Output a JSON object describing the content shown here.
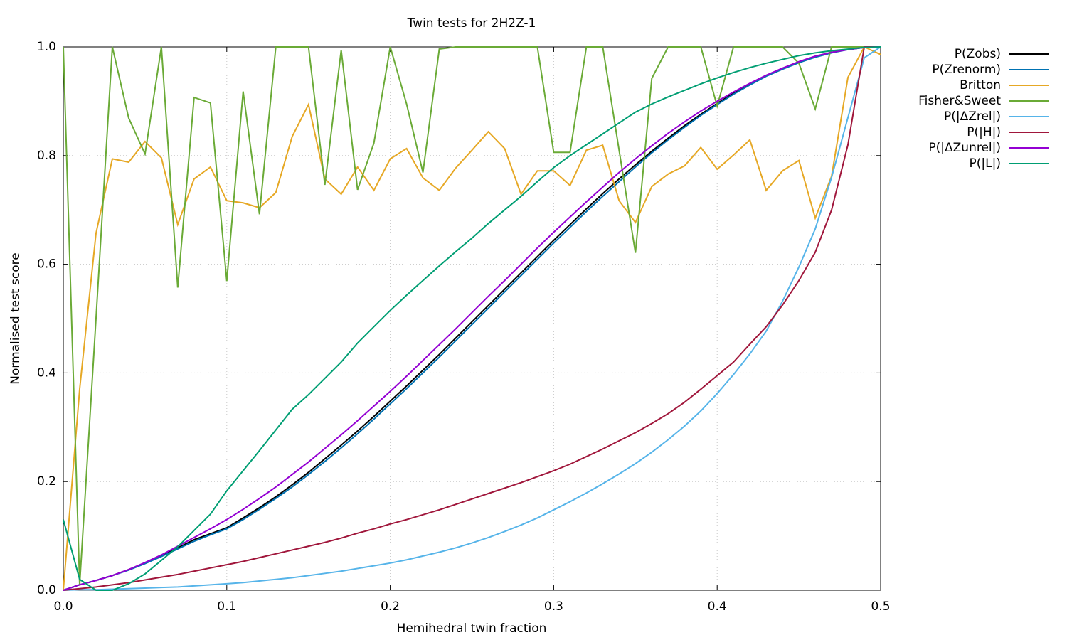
{
  "chart_data": {
    "type": "line",
    "title": "Twin tests for 2H2Z-1",
    "x_label": "Hemihedral twin fraction",
    "y_label": "Normalised test score",
    "x": [
      0,
      0.01,
      0.02,
      0.03,
      0.04,
      0.05,
      0.06,
      0.07,
      0.08,
      0.09,
      0.1,
      0.11,
      0.12,
      0.13,
      0.14,
      0.15,
      0.16,
      0.17,
      0.18,
      0.19,
      0.2,
      0.21,
      0.22,
      0.23,
      0.24,
      0.25,
      0.26,
      0.27,
      0.28,
      0.29,
      0.3,
      0.31,
      0.32,
      0.33,
      0.34,
      0.35,
      0.36,
      0.37,
      0.38,
      0.39,
      0.4,
      0.41,
      0.42,
      0.43,
      0.44,
      0.45,
      0.46,
      0.47,
      0.48,
      0.49,
      0.5
    ],
    "xlim": [
      0,
      0.5
    ],
    "xticks": [
      {
        "value": 0,
        "label": "0.0"
      },
      0.1,
      0.2,
      0.3,
      0.4,
      0.5
    ],
    "ylim": [
      0,
      1
    ],
    "yticks": [
      {
        "value": 0,
        "label": "0.0"
      },
      0.2,
      0.4,
      0.6,
      0.8,
      {
        "value": 1,
        "label": "1.0"
      }
    ],
    "grid": true,
    "legend": "outside-top-right",
    "series": [
      {
        "name": "P(Zobs)",
        "color": "#000000",
        "values": [
          0,
          0.01,
          0.018,
          0.027,
          0.038,
          0.05,
          0.063,
          0.078,
          0.093,
          0.104,
          0.115,
          0.133,
          0.152,
          0.172,
          0.194,
          0.217,
          0.242,
          0.267,
          0.293,
          0.32,
          0.348,
          0.376,
          0.405,
          0.434,
          0.464,
          0.494,
          0.524,
          0.554,
          0.584,
          0.614,
          0.644,
          0.673,
          0.702,
          0.73,
          0.757,
          0.783,
          0.808,
          0.832,
          0.855,
          0.876,
          0.896,
          0.915,
          0.932,
          0.947,
          0.96,
          0.972,
          0.982,
          0.99,
          0.995,
          0.999,
          1.0
        ]
      },
      {
        "name": "P(Zrenorm)",
        "color": "#0072b2",
        "values": [
          0,
          0.01,
          0.018,
          0.027,
          0.037,
          0.049,
          0.062,
          0.076,
          0.09,
          0.102,
          0.113,
          0.13,
          0.149,
          0.169,
          0.19,
          0.213,
          0.237,
          0.262,
          0.288,
          0.315,
          0.343,
          0.371,
          0.4,
          0.429,
          0.459,
          0.489,
          0.519,
          0.549,
          0.579,
          0.609,
          0.639,
          0.668,
          0.697,
          0.725,
          0.752,
          0.779,
          0.805,
          0.829,
          0.852,
          0.874,
          0.894,
          0.913,
          0.93,
          0.946,
          0.959,
          0.971,
          0.981,
          0.989,
          0.995,
          0.999,
          1.0
        ]
      },
      {
        "name": "Britton",
        "color": "#e6a825",
        "values": [
          0,
          0.37,
          0.657,
          0.794,
          0.788,
          0.826,
          0.796,
          0.673,
          0.757,
          0.779,
          0.717,
          0.713,
          0.704,
          0.732,
          0.835,
          0.894,
          0.757,
          0.729,
          0.779,
          0.736,
          0.794,
          0.813,
          0.759,
          0.736,
          0.777,
          0.81,
          0.844,
          0.813,
          0.729,
          0.772,
          0.772,
          0.745,
          0.81,
          0.819,
          0.717,
          0.677,
          0.743,
          0.766,
          0.781,
          0.815,
          0.775,
          0.801,
          0.829,
          0.736,
          0.772,
          0.791,
          0.685,
          0.762,
          0.944,
          1.0,
          0.986
        ]
      },
      {
        "name": "Fisher&Sweet",
        "color": "#6aaa36",
        "values": [
          1.0,
          0.01,
          0.5,
          1.0,
          0.869,
          0.803,
          1.0,
          0.557,
          0.907,
          0.897,
          0.569,
          0.918,
          0.692,
          1.0,
          1.0,
          1.0,
          0.746,
          0.994,
          0.737,
          0.823,
          1.0,
          0.895,
          0.769,
          0.996,
          1.0,
          1.0,
          1.0,
          1.0,
          1.0,
          1.0,
          0.806,
          0.806,
          1.0,
          1.0,
          0.81,
          0.621,
          0.942,
          1.0,
          1.0,
          1.0,
          0.891,
          1.0,
          1.0,
          1.0,
          1.0,
          0.97,
          0.886,
          1.0,
          1.0,
          1.0,
          1.0
        ]
      },
      {
        "name": "P(|ΔZrel|)",
        "color": "#56b4e9",
        "values": [
          0,
          0.001,
          0.001,
          0.002,
          0.003,
          0.004,
          0.005,
          0.006,
          0.008,
          0.01,
          0.012,
          0.014,
          0.017,
          0.02,
          0.023,
          0.027,
          0.031,
          0.035,
          0.04,
          0.045,
          0.05,
          0.056,
          0.063,
          0.07,
          0.078,
          0.087,
          0.097,
          0.108,
          0.12,
          0.133,
          0.148,
          0.163,
          0.179,
          0.196,
          0.214,
          0.233,
          0.254,
          0.277,
          0.302,
          0.33,
          0.362,
          0.397,
          0.435,
          0.477,
          0.532,
          0.595,
          0.665,
          0.76,
          0.87,
          0.98,
          1.0
        ]
      },
      {
        "name": "P(|H|)",
        "color": "#a0163b",
        "values": [
          0,
          0.003,
          0.006,
          0.01,
          0.014,
          0.019,
          0.024,
          0.029,
          0.035,
          0.041,
          0.047,
          0.053,
          0.06,
          0.067,
          0.074,
          0.081,
          0.088,
          0.096,
          0.105,
          0.113,
          0.122,
          0.13,
          0.139,
          0.148,
          0.158,
          0.168,
          0.178,
          0.188,
          0.198,
          0.209,
          0.22,
          0.232,
          0.246,
          0.26,
          0.275,
          0.29,
          0.307,
          0.325,
          0.346,
          0.37,
          0.395,
          0.42,
          0.453,
          0.485,
          0.525,
          0.57,
          0.622,
          0.7,
          0.82,
          1.0,
          1.0
        ]
      },
      {
        "name": "P(|ΔZunrel|)",
        "color": "#9400d3",
        "values": [
          0,
          0.01,
          0.018,
          0.027,
          0.038,
          0.051,
          0.065,
          0.081,
          0.097,
          0.113,
          0.13,
          0.149,
          0.169,
          0.19,
          0.213,
          0.236,
          0.261,
          0.286,
          0.312,
          0.339,
          0.366,
          0.394,
          0.423,
          0.452,
          0.481,
          0.511,
          0.541,
          0.57,
          0.6,
          0.63,
          0.659,
          0.687,
          0.715,
          0.742,
          0.769,
          0.794,
          0.818,
          0.841,
          0.862,
          0.882,
          0.9,
          0.917,
          0.933,
          0.948,
          0.961,
          0.973,
          0.983,
          0.99,
          0.995,
          0.999,
          1.0
        ]
      },
      {
        "name": "P(|L|)",
        "color": "#009e73",
        "values": [
          0.13,
          0.02,
          0,
          0,
          0.012,
          0.03,
          0.055,
          0.08,
          0.11,
          0.14,
          0.183,
          0.22,
          0.257,
          0.295,
          0.333,
          0.36,
          0.39,
          0.42,
          0.455,
          0.485,
          0.515,
          0.543,
          0.57,
          0.597,
          0.623,
          0.648,
          0.675,
          0.7,
          0.725,
          0.752,
          0.778,
          0.8,
          0.82,
          0.84,
          0.86,
          0.88,
          0.895,
          0.908,
          0.92,
          0.932,
          0.943,
          0.953,
          0.962,
          0.97,
          0.977,
          0.984,
          0.989,
          0.993,
          0.996,
          0.999,
          1.0
        ]
      }
    ]
  }
}
